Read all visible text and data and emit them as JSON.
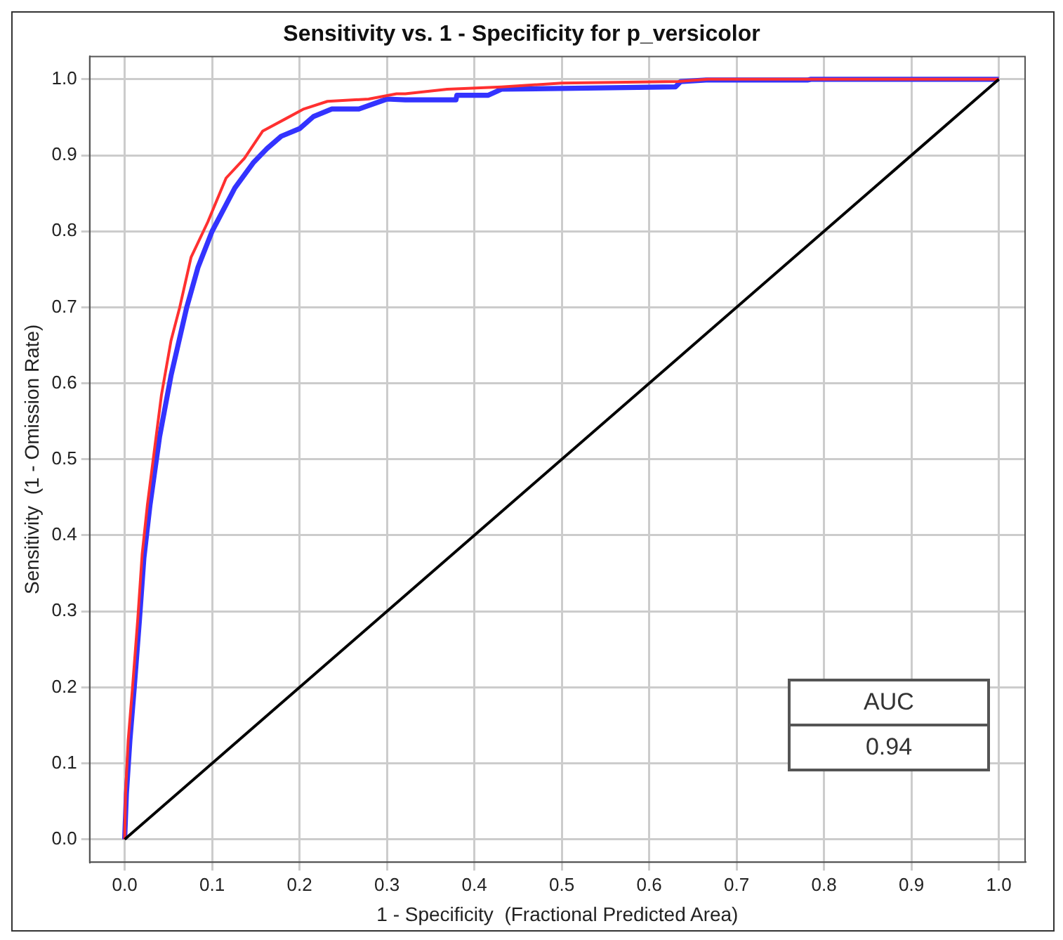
{
  "chart_data": {
    "type": "line",
    "title": "Sensitivity vs. 1 - Specificity for p_versicolor",
    "xlabel": "1 - Specificity  (Fractional Predicted Area)",
    "ylabel": "Sensitivity  (1 - Omission Rate)",
    "xlim": [
      -0.04,
      1.03
    ],
    "ylim": [
      -0.03,
      1.03
    ],
    "xticks": [
      {
        "value": 0,
        "label": "0.0"
      },
      0.1,
      0.2,
      0.3,
      0.4,
      0.5,
      0.6,
      0.7,
      0.8,
      0.9,
      {
        "value": 1,
        "label": "1.0"
      }
    ],
    "yticks": [
      {
        "value": 0,
        "label": "0.0"
      },
      0.1,
      0.2,
      0.3,
      0.4,
      0.5,
      0.6,
      0.7,
      0.8,
      0.9,
      {
        "value": 1,
        "label": "1.0"
      }
    ],
    "grid": true,
    "legend": false,
    "marker": "none",
    "line_style": "solid",
    "annotations": [
      "AUC",
      "0.94"
    ],
    "series": [
      {
        "color": "#3333ff",
        "x": [
          0,
          0.002,
          0.006,
          0.011,
          0.017,
          0.022,
          0.029,
          0.04,
          0.053,
          0.061,
          0.071,
          0.084,
          0.1,
          0.126,
          0.147,
          0.163,
          0.179,
          0.2,
          0.216,
          0.237,
          0.268,
          0.3,
          0.321,
          0.379,
          0.38,
          0.416,
          0.431,
          0.5,
          0.63,
          0.636,
          0.665,
          0.781,
          0.785,
          1
        ],
        "values": [
          0,
          0.06,
          0.13,
          0.2,
          0.29,
          0.37,
          0.44,
          0.53,
          0.61,
          0.65,
          0.7,
          0.753,
          0.8,
          0.857,
          0.89,
          0.909,
          0.925,
          0.935,
          0.951,
          0.961,
          0.961,
          0.974,
          0.973,
          0.973,
          0.979,
          0.979,
          0.987,
          0.988,
          0.99,
          0.997,
          0.999,
          0.999,
          1,
          1
        ]
      },
      {
        "color": "#ff3030",
        "x": [
          0,
          0.001,
          0.004,
          0.009,
          0.015,
          0.02,
          0.026,
          0.042,
          0.053,
          0.063,
          0.076,
          0.095,
          0.116,
          0.137,
          0.158,
          0.184,
          0.205,
          0.232,
          0.279,
          0.311,
          0.321,
          0.369,
          0.431,
          0.5,
          0.633,
          0.667,
          1
        ],
        "values": [
          0,
          0.06,
          0.13,
          0.2,
          0.29,
          0.375,
          0.44,
          0.584,
          0.656,
          0.7,
          0.766,
          0.812,
          0.87,
          0.896,
          0.932,
          0.948,
          0.961,
          0.971,
          0.974,
          0.981,
          0.981,
          0.987,
          0.99,
          0.995,
          0.997,
          1,
          1
        ]
      },
      {
        "color": "#000000",
        "x": [
          0,
          1
        ],
        "values": [
          0,
          1
        ]
      }
    ]
  }
}
